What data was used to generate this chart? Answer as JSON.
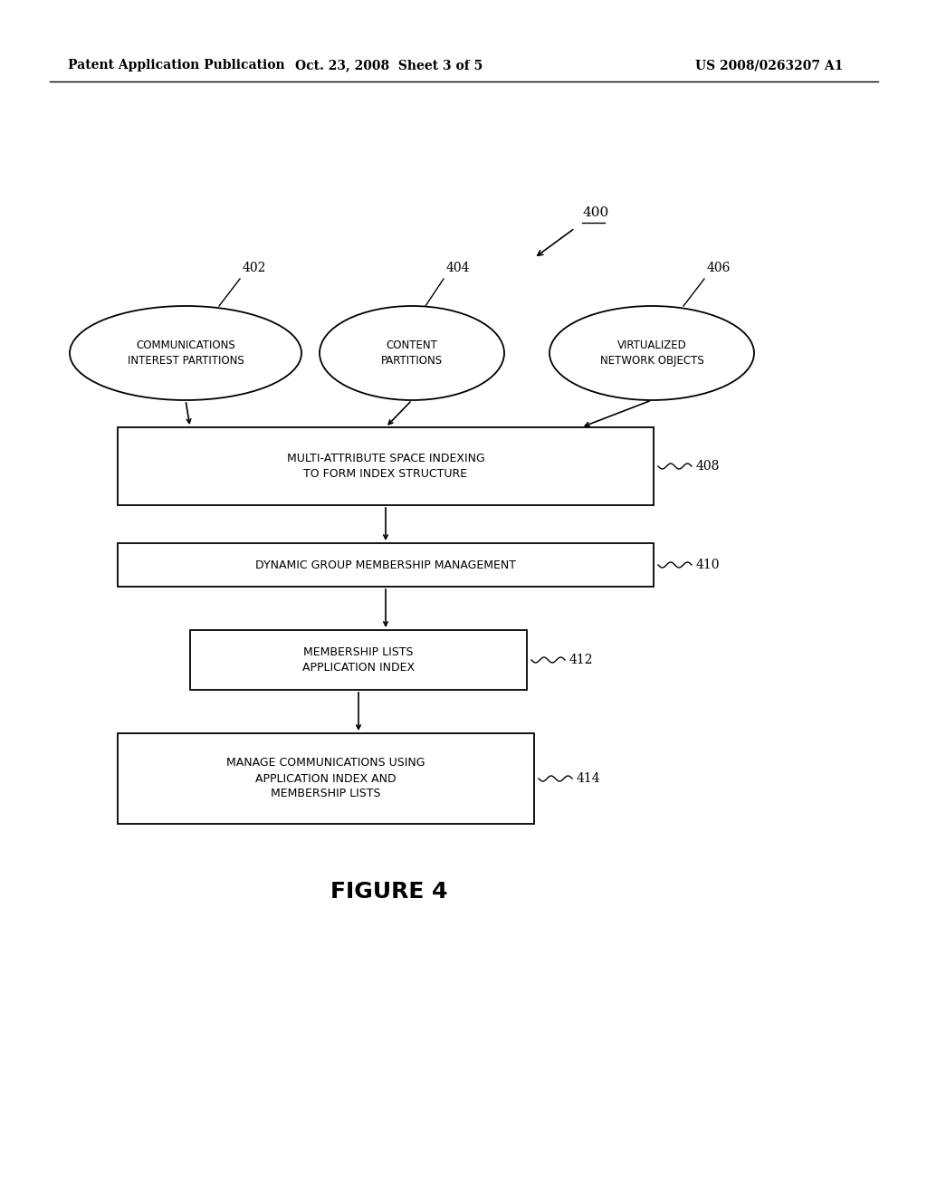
{
  "header_left": "Patent Application Publication",
  "header_mid": "Oct. 23, 2008  Sheet 3 of 5",
  "header_right": "US 2008/0263207 A1",
  "figure_label": "FIGURE 4",
  "background": "#ffffff",
  "text_color": "#000000",
  "line_color": "#000000"
}
